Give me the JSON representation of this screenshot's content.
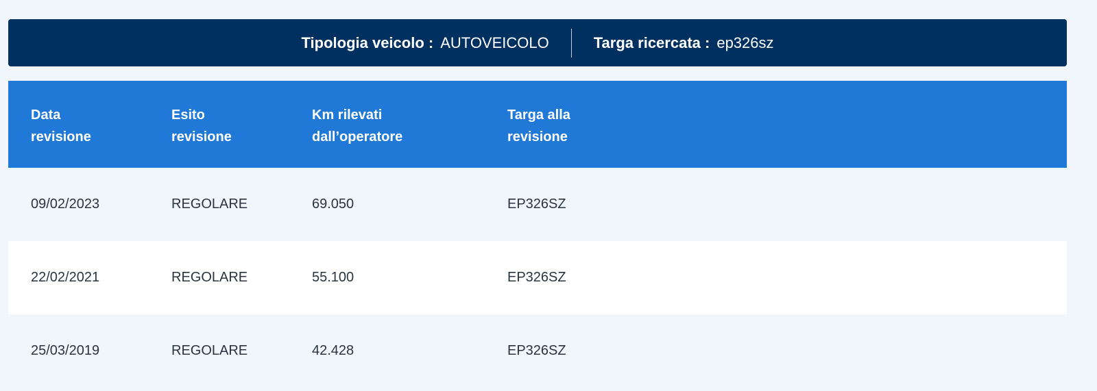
{
  "banner": {
    "vehicle_type_label": "Tipologia veicolo :",
    "vehicle_type_value": "AUTOVEICOLO",
    "plate_label": "Targa ricercata :",
    "plate_value": "ep326sz"
  },
  "table": {
    "headers": [
      [
        "Data",
        "revisione"
      ],
      [
        "Esito",
        "revisione"
      ],
      [
        "Km rilevati",
        "dall’operatore"
      ],
      [
        "Targa alla",
        "revisione"
      ]
    ],
    "rows": [
      {
        "date": "09/02/2023",
        "outcome": "REGOLARE",
        "km": "69.050",
        "plate": "EP326SZ"
      },
      {
        "date": "22/02/2021",
        "outcome": "REGOLARE",
        "km": "55.100",
        "plate": "EP326SZ"
      },
      {
        "date": "25/03/2019",
        "outcome": "REGOLARE",
        "km": "42.428",
        "plate": "EP326SZ"
      }
    ]
  },
  "colors": {
    "banner": "#003060",
    "header": "#2079d6",
    "row_alt": "#ffffff",
    "row": "#f0f6fc"
  }
}
